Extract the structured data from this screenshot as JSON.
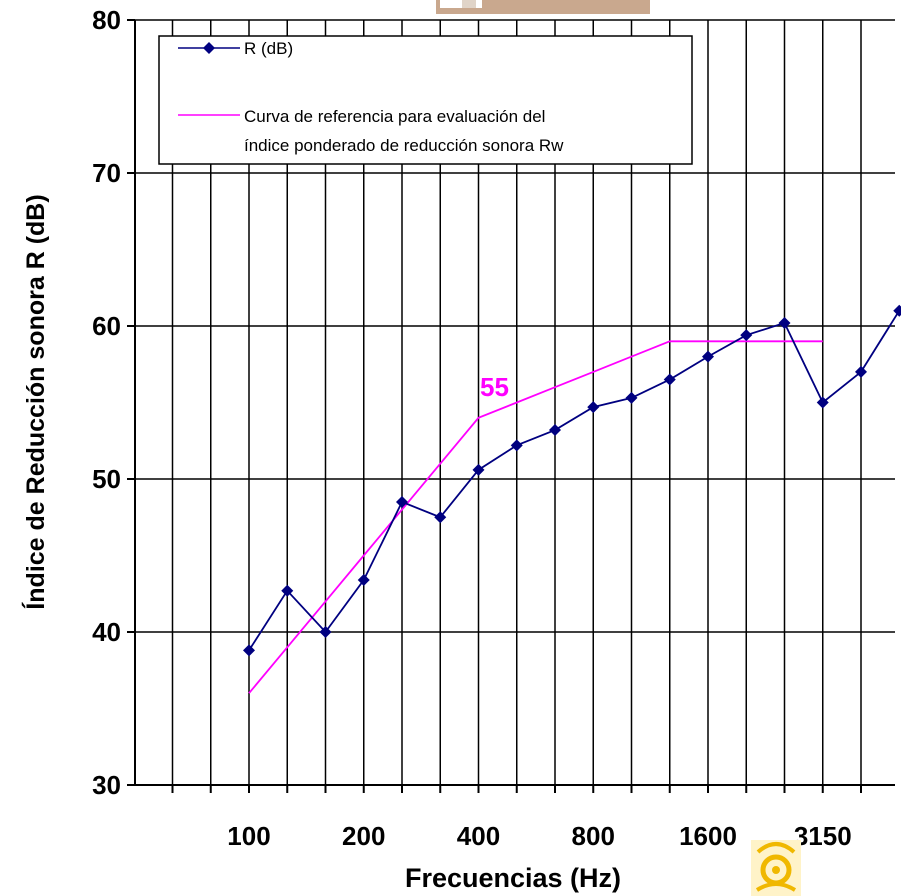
{
  "chart_data": {
    "type": "line",
    "xlabel": "Frecuencias (Hz)",
    "ylabel": "Índice de Reducción sonora R (dB)",
    "ylim": [
      30,
      80
    ],
    "yticks": [
      30,
      40,
      50,
      60,
      70,
      80
    ],
    "x_positions": [
      100,
      125,
      160,
      200,
      250,
      315,
      400,
      500,
      630,
      800,
      1000,
      1250,
      1600,
      2000,
      2500,
      3150,
      4000,
      5000
    ],
    "x_tick_labels": [
      "100",
      "200",
      "400",
      "800",
      "1600",
      "3150"
    ],
    "grid": true,
    "legend_position": "top-left",
    "annotation": "55",
    "series": [
      {
        "name": "R (dB)",
        "color": "#000080",
        "marker": "diamond",
        "x": [
          100,
          125,
          160,
          200,
          250,
          315,
          400,
          500,
          630,
          800,
          1000,
          1250,
          1600,
          2000,
          2500,
          3150,
          4000,
          5000
        ],
        "values": [
          38.8,
          42.7,
          40.0,
          43.4,
          48.5,
          47.5,
          50.6,
          52.2,
          53.2,
          54.7,
          55.3,
          56.5,
          58.0,
          59.4,
          60.2,
          55.0,
          57.0,
          61.0
        ]
      },
      {
        "name": "Curva de referencia para evaluación del índice ponderado de reducción sonora Rw",
        "legend_lines": [
          "Curva de referencia para evaluación del",
          "índice ponderado de reducción sonora Rw"
        ],
        "color": "#ff00ff",
        "marker": "none",
        "x": [
          100,
          125,
          160,
          200,
          250,
          315,
          400,
          500,
          630,
          800,
          1000,
          1250,
          1600,
          2000,
          2500,
          3150
        ],
        "values": [
          36,
          39,
          42,
          45,
          48,
          51,
          54,
          55,
          56,
          57,
          58,
          59,
          59,
          59,
          59,
          59
        ]
      }
    ]
  }
}
